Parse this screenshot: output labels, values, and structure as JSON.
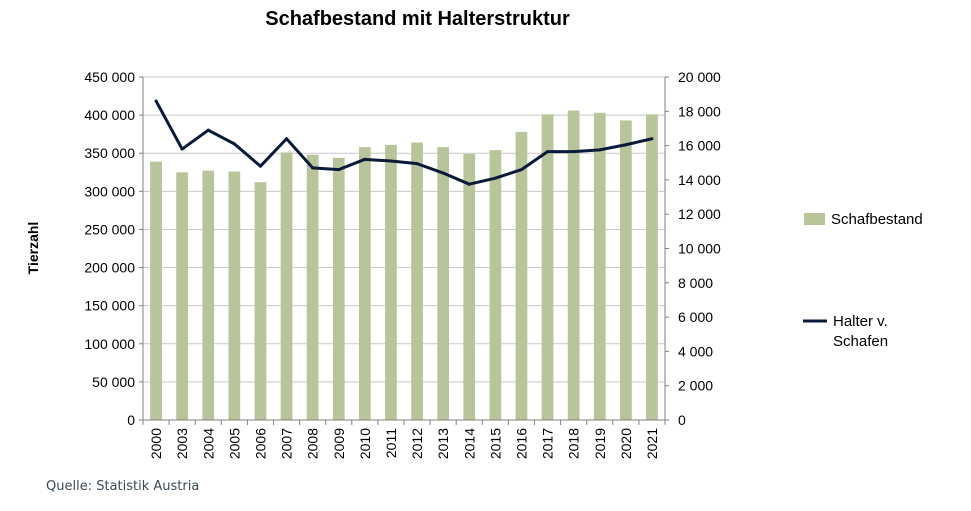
{
  "chart_data": {
    "type": "bar",
    "title": "Schafbestand mit Halterstruktur",
    "ylabel": "Tierzahl",
    "y2label": "",
    "categories": [
      "2000",
      "2003",
      "2004",
      "2005",
      "2006",
      "2007",
      "2008",
      "2009",
      "2010",
      "2011",
      "2012",
      "2013",
      "2014",
      "2015",
      "2016",
      "2017",
      "2018",
      "2019",
      "2020",
      "2021"
    ],
    "ylim": [
      0,
      450000
    ],
    "y2lim": [
      0,
      20000
    ],
    "yticks": [
      0,
      50000,
      100000,
      150000,
      200000,
      250000,
      300000,
      350000,
      400000,
      450000
    ],
    "y2ticks": [
      0,
      2000,
      4000,
      6000,
      8000,
      10000,
      12000,
      14000,
      16000,
      18000,
      20000
    ],
    "ytick_labels": [
      "0",
      "50 000",
      "100 000",
      "150 000",
      "200 000",
      "250 000",
      "300 000",
      "350 000",
      "400 000",
      "450 000"
    ],
    "y2tick_labels": [
      "0",
      "2 000",
      "4 000",
      "6 000",
      "8 000",
      "10 000",
      "12 000",
      "14 000",
      "16 000",
      "18 000",
      "20 000"
    ],
    "grid": true,
    "legend_position": "right",
    "series": [
      {
        "name": "Schafbestand",
        "type": "bar",
        "axis": "left",
        "color": "#b8c49a",
        "values": [
          339000,
          325000,
          327000,
          326000,
          312000,
          351000,
          348000,
          344000,
          358000,
          361000,
          364000,
          358000,
          349000,
          354000,
          378000,
          401000,
          406000,
          403000,
          393000,
          401000
        ]
      },
      {
        "name": "Halter v. Schafen",
        "type": "line",
        "axis": "right",
        "color": "#0a1a3a",
        "values": [
          18600,
          15800,
          16900,
          16100,
          14800,
          16400,
          14700,
          14600,
          15200,
          15100,
          14950,
          14400,
          13750,
          14100,
          14600,
          15650,
          15650,
          15750,
          16050,
          16400
        ]
      }
    ]
  },
  "legend": {
    "bar_label": "Schafbestand",
    "line_label_1": "Halter v.",
    "line_label_2": "Schafen"
  },
  "source": "Quelle: Statistik Austria"
}
